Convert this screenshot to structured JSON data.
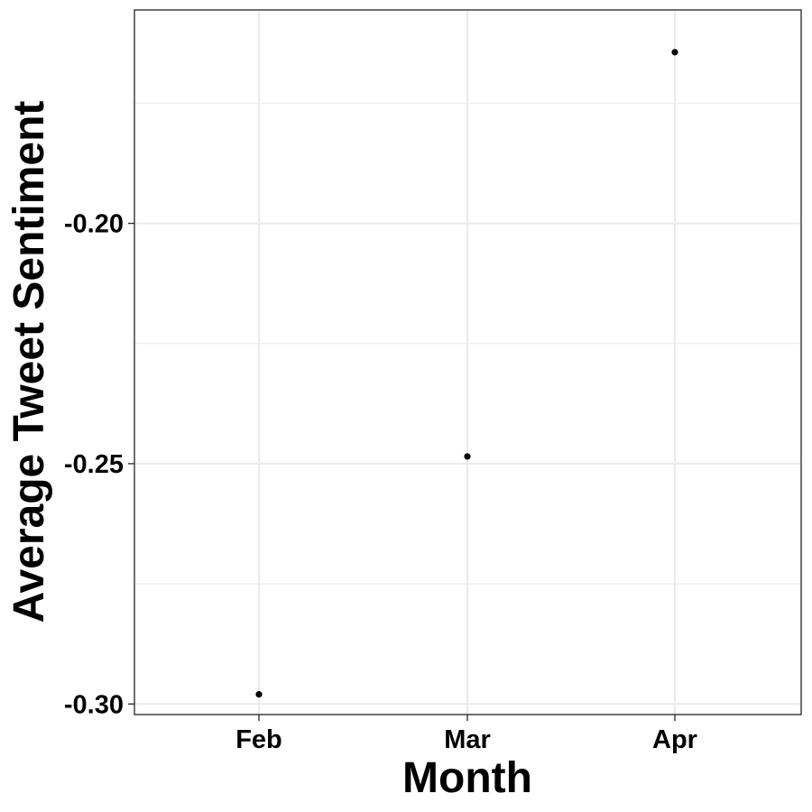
{
  "chart_data": {
    "type": "scatter",
    "title": "",
    "xlabel": "Month",
    "ylabel": "Average Tweet Sentiment",
    "categories": [
      "Feb",
      "Mar",
      "Apr"
    ],
    "values": [
      -0.298,
      -0.2485,
      -0.1644
    ],
    "ylim": [
      -0.3022,
      -0.1556
    ],
    "y_major_ticks": [
      -0.3,
      -0.25,
      -0.2
    ],
    "y_major_tick_labels": [
      "-0.30",
      "-0.25",
      "-0.20"
    ],
    "y_minor_gridlines": [
      -0.275,
      -0.225,
      -0.175
    ],
    "grid": true,
    "legend": "none",
    "colors": {
      "points": "#000000",
      "grid": "#ebebeb",
      "panel_border": "#333333",
      "background": "#ffffff"
    }
  }
}
